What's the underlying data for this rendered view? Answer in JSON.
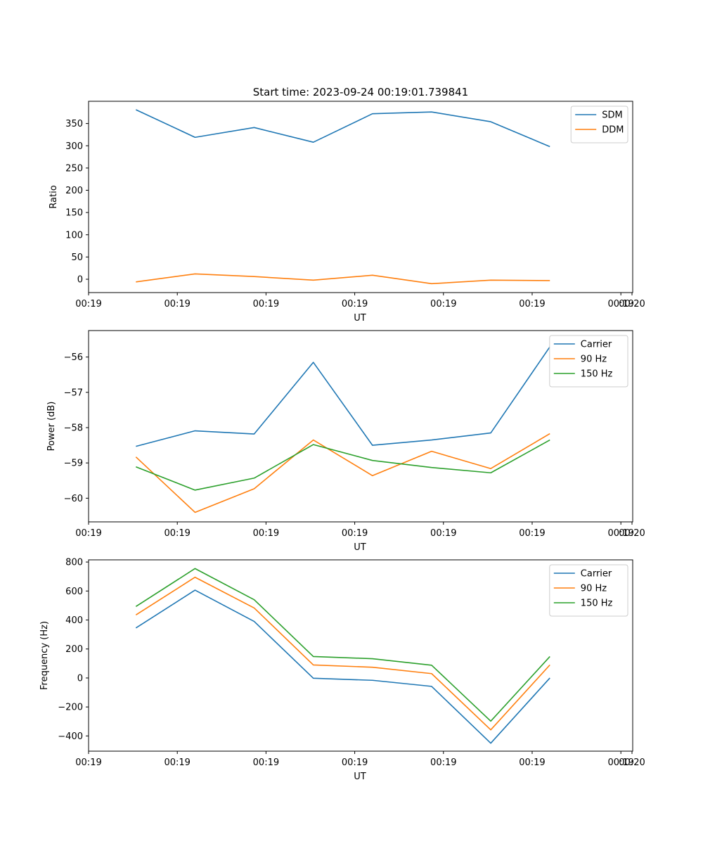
{
  "colors": {
    "blue": "#1f77b4",
    "orange": "#ff7f0e",
    "green": "#2ca02c"
  },
  "chart_data": [
    {
      "type": "line",
      "title": "Start time: 2023-09-24 00:19:01.739841",
      "xlabel": "UT",
      "ylabel": "Ratio",
      "x": [
        1,
        2,
        3,
        4,
        5,
        6,
        7,
        8
      ],
      "xlim": [
        0.2,
        9.4
      ],
      "ylim": [
        -30,
        400
      ],
      "xticks": [
        0,
        1.5,
        3,
        4.5,
        6,
        7.5,
        9
      ],
      "xtick_labels": [
        "00:19",
        "00:19",
        "00:19",
        "00:19",
        "00:19",
        "00:19",
        "00:19"
      ],
      "xtick_positions": [
        0.2,
        1.7,
        3.2,
        4.7,
        6.2,
        7.7,
        9.2
      ],
      "xtick_extra_label": "00:20",
      "yticks": [
        0,
        50,
        100,
        150,
        200,
        250,
        300,
        350
      ],
      "ytick_labels": [
        "0",
        "50",
        "100",
        "150",
        "200",
        "250",
        "300",
        "350"
      ],
      "legend_loc": "upper right",
      "series": [
        {
          "name": "SDM",
          "color": "blue",
          "values": [
            381,
            319,
            341,
            308,
            372,
            376,
            354,
            298
          ]
        },
        {
          "name": "DDM",
          "color": "orange",
          "values": [
            -6,
            12,
            6,
            -2,
            9,
            -10,
            -2,
            -3
          ]
        }
      ]
    },
    {
      "type": "line",
      "title": "",
      "xlabel": "UT",
      "ylabel": "Power (dB)",
      "x": [
        1,
        2,
        3,
        4,
        5,
        6,
        7,
        8
      ],
      "xlim": [
        0.2,
        9.4
      ],
      "ylim": [
        -60.67,
        -55.25
      ],
      "xtick_labels": [
        "00:19",
        "00:19",
        "00:19",
        "00:19",
        "00:19",
        "00:19",
        "00:19"
      ],
      "xtick_positions": [
        0.2,
        1.7,
        3.2,
        4.7,
        6.2,
        7.7,
        9.2
      ],
      "xtick_extra_label": "00:20",
      "yticks": [
        -60,
        -59,
        -58,
        -57,
        -56
      ],
      "ytick_labels": [
        "−60",
        "−59",
        "−58",
        "−57",
        "−56"
      ],
      "legend_loc": "upper right",
      "series": [
        {
          "name": "Carrier",
          "color": "blue",
          "values": [
            -58.53,
            -58.09,
            -58.18,
            -56.15,
            -58.5,
            -58.35,
            -58.15,
            -55.71
          ]
        },
        {
          "name": "90 Hz",
          "color": "orange",
          "values": [
            -58.83,
            -60.4,
            -59.73,
            -58.35,
            -59.36,
            -58.67,
            -59.16,
            -58.17
          ]
        },
        {
          "name": "150 Hz",
          "color": "green",
          "values": [
            -59.11,
            -59.77,
            -59.43,
            -58.48,
            -58.93,
            -59.13,
            -59.28,
            -58.35
          ]
        }
      ]
    },
    {
      "type": "line",
      "title": "",
      "xlabel": "UT",
      "ylabel": "Frequency (Hz)",
      "x": [
        1,
        2,
        3,
        4,
        5,
        6,
        7,
        8
      ],
      "xlim": [
        0.2,
        9.4
      ],
      "ylim": [
        -505,
        815
      ],
      "xtick_labels": [
        "00:19",
        "00:19",
        "00:19",
        "00:19",
        "00:19",
        "00:19",
        "00:19"
      ],
      "xtick_positions": [
        0.2,
        1.7,
        3.2,
        4.7,
        6.2,
        7.7,
        9.2
      ],
      "xtick_extra_label": "00:20",
      "yticks": [
        -400,
        -200,
        0,
        200,
        400,
        600,
        800
      ],
      "ytick_labels": [
        "−400",
        "−200",
        "0",
        "200",
        "400",
        "600",
        "800"
      ],
      "legend_loc": "upper right",
      "series": [
        {
          "name": "Carrier",
          "color": "blue",
          "values": [
            345,
            606,
            390,
            -2,
            -16,
            -58,
            -450,
            0
          ]
        },
        {
          "name": "90 Hz",
          "color": "orange",
          "values": [
            435,
            695,
            483,
            90,
            74,
            30,
            -358,
            90
          ]
        },
        {
          "name": "150 Hz",
          "color": "green",
          "values": [
            493,
            755,
            540,
            148,
            133,
            88,
            -298,
            148
          ]
        }
      ]
    }
  ]
}
